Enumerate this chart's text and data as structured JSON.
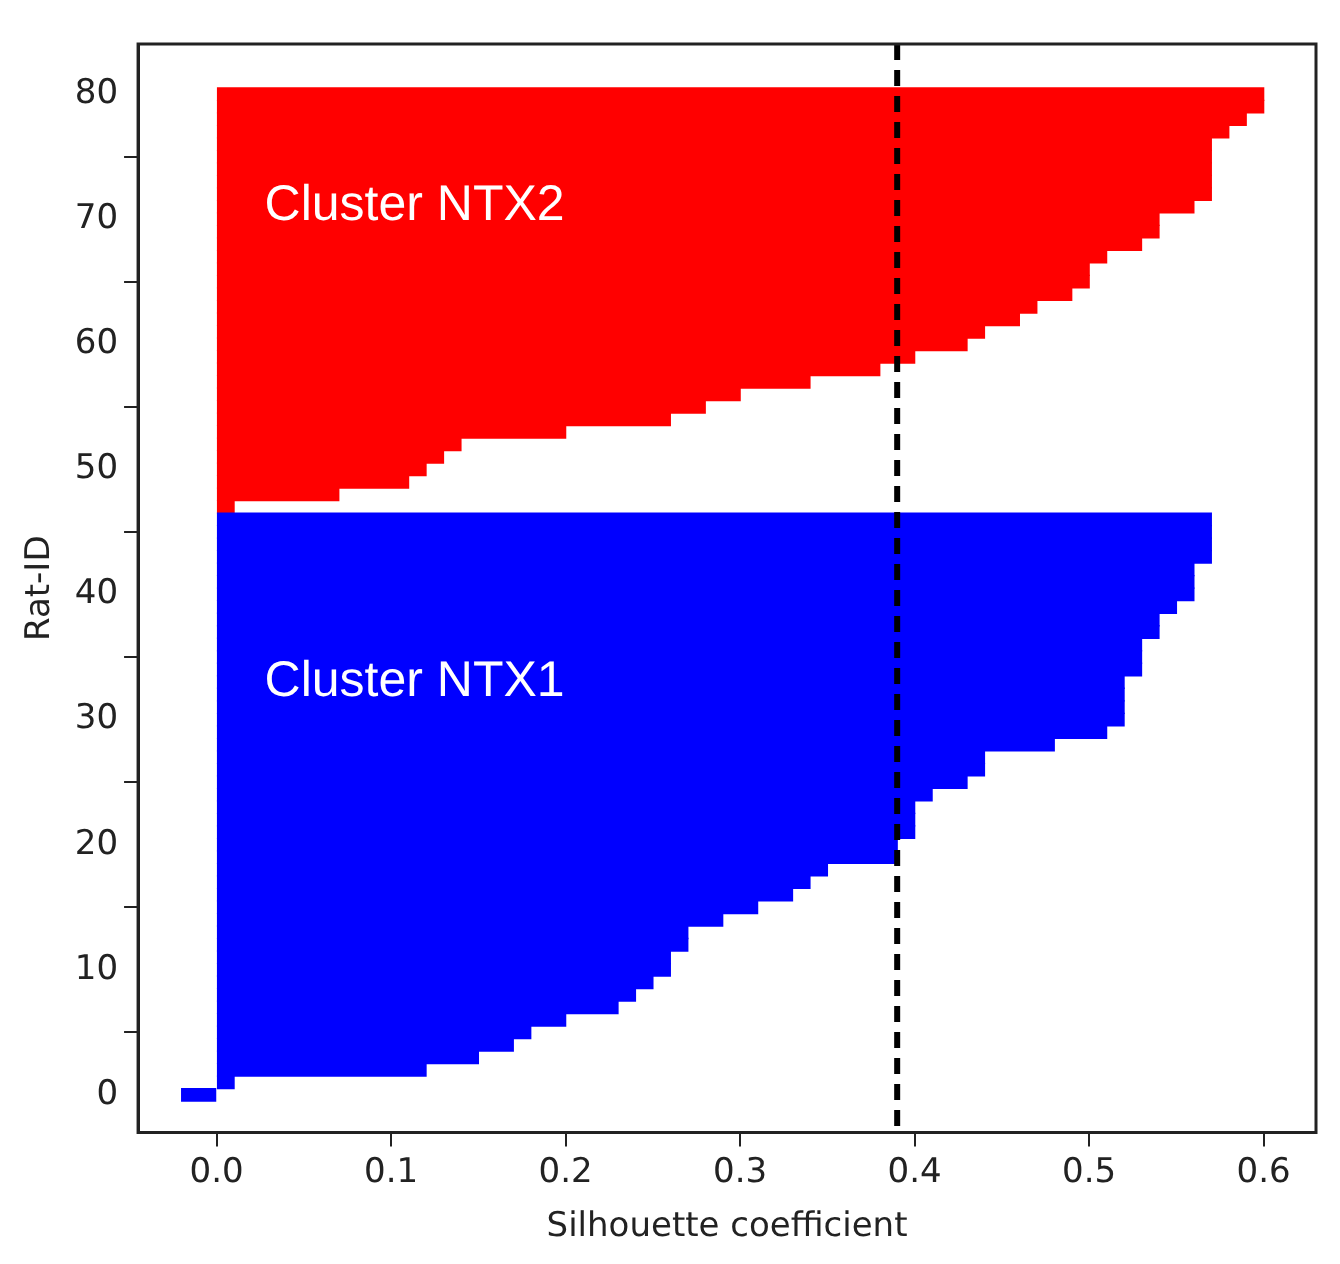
{
  "chart_data": {
    "type": "bar",
    "orientation": "horizontal",
    "xlabel": "Silhouette coefficient",
    "ylabel": "Rat-ID",
    "xlim": [
      -0.045,
      0.63
    ],
    "xticks": [
      {
        "value": 0,
        "label": "0.0"
      },
      {
        "value": 0.1,
        "label": "0.1"
      },
      {
        "value": 0.2,
        "label": "0.2"
      },
      {
        "value": 0.3,
        "label": "0.3"
      },
      {
        "value": 0.4,
        "label": "0.4"
      },
      {
        "value": 0.5,
        "label": "0.5"
      },
      {
        "value": 0.6,
        "label": "0.6"
      }
    ],
    "ylim": [
      -3,
      84
    ],
    "yticks": [
      0,
      10,
      20,
      30,
      40,
      50,
      60,
      70,
      80
    ],
    "series": [
      {
        "name": "Cluster NTX1",
        "color": "#0000ff",
        "x": [
          0,
          1,
          2,
          3,
          4,
          5,
          6,
          7,
          8,
          9,
          10,
          11,
          12,
          13,
          14,
          15,
          16,
          17,
          18,
          19,
          20,
          21,
          22,
          23,
          24,
          25,
          26,
          27,
          28,
          29,
          30,
          31,
          32,
          33,
          34,
          35,
          36,
          37,
          38,
          39,
          40,
          41,
          42,
          43,
          44,
          45,
          46
        ],
        "values": [
          -0.02,
          0.01,
          0.12,
          0.15,
          0.17,
          0.18,
          0.2,
          0.23,
          0.24,
          0.25,
          0.26,
          0.26,
          0.27,
          0.27,
          0.29,
          0.31,
          0.33,
          0.34,
          0.35,
          0.39,
          0.39,
          0.4,
          0.4,
          0.4,
          0.41,
          0.43,
          0.44,
          0.44,
          0.48,
          0.51,
          0.52,
          0.52,
          0.52,
          0.52,
          0.53,
          0.53,
          0.53,
          0.54,
          0.54,
          0.55,
          0.56,
          0.56,
          0.56,
          0.57,
          0.57,
          0.57,
          0.57
        ]
      },
      {
        "name": "Cluster NTX2",
        "color": "#ff0000",
        "x": [
          47,
          48,
          49,
          50,
          51,
          52,
          53,
          54,
          55,
          56,
          57,
          58,
          59,
          60,
          61,
          62,
          63,
          64,
          65,
          66,
          67,
          68,
          69,
          70,
          71,
          72,
          73,
          74,
          75,
          76,
          77,
          78,
          79,
          80
        ],
        "values": [
          0.01,
          0.07,
          0.11,
          0.12,
          0.13,
          0.14,
          0.2,
          0.26,
          0.28,
          0.3,
          0.34,
          0.38,
          0.4,
          0.43,
          0.44,
          0.46,
          0.47,
          0.49,
          0.5,
          0.5,
          0.51,
          0.53,
          0.54,
          0.54,
          0.56,
          0.57,
          0.57,
          0.57,
          0.57,
          0.57,
          0.58,
          0.59,
          0.6,
          0.6
        ]
      }
    ],
    "ref_lines": [
      {
        "axis": "x",
        "value": 0.39,
        "color": "#000000",
        "line_style": "dashed"
      }
    ],
    "grid": false,
    "legend": false
  }
}
